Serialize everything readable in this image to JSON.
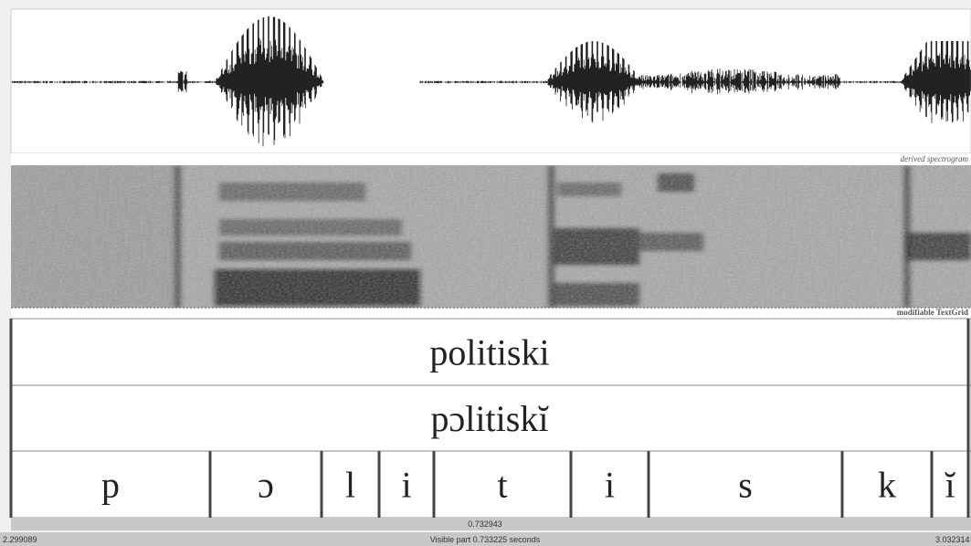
{
  "panels": {
    "spectrogram_label": "derived spectrogram",
    "textgrid_label": "modifiable TextGrid"
  },
  "textgrid": {
    "tiers": [
      {
        "intervals": [
          "politiski"
        ]
      },
      {
        "intervals": [
          "pɔlitiskĭ"
        ]
      },
      {
        "intervals": [
          "p",
          "ɔ",
          "l",
          "i",
          "t",
          "i",
          "s",
          "k",
          "ĭ"
        ]
      }
    ]
  },
  "status": {
    "selection": "0.732943",
    "start": "2.299089",
    "visible": "Visible part 0.733225 seconds",
    "end": "3.032314"
  }
}
